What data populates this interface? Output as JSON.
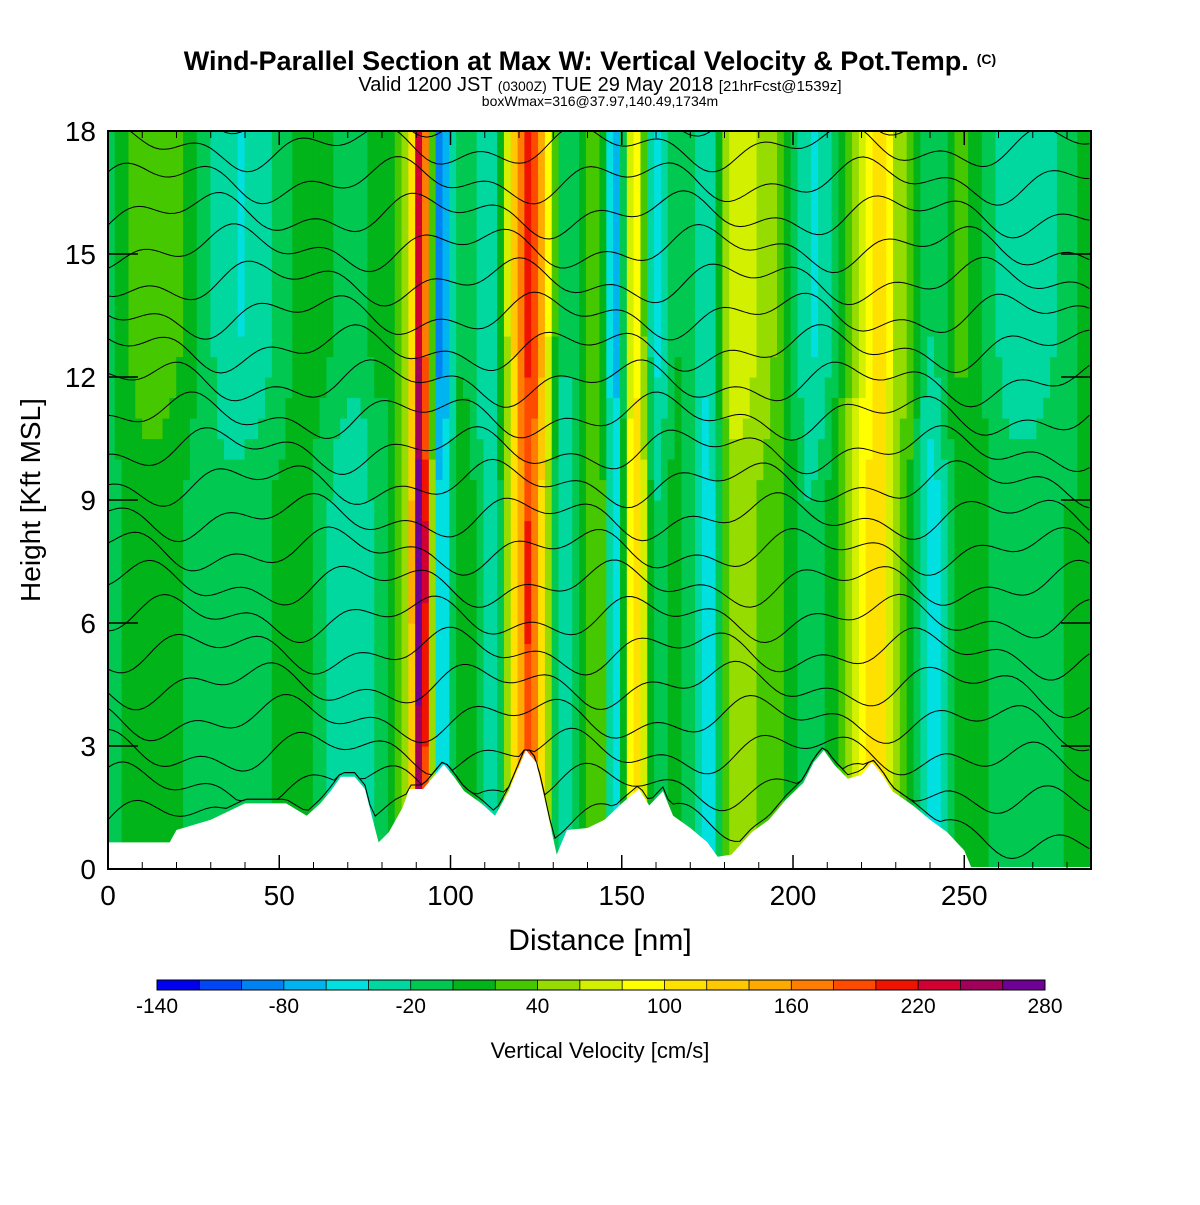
{
  "chart_data": {
    "type": "heatmap",
    "title": "Wind-Parallel Section at Max W: Vertical Velocity & Pot.Temp.",
    "title_mark": "(C)",
    "subtitle": {
      "main": "Valid 1200 JST",
      "utc": "(0300Z)",
      "date": "TUE 29 May 2018",
      "fcst": "[21hrFcst@1539z]"
    },
    "box_info": "boxWmax=316@37.97,140.49,1734m",
    "xlabel": "Distance [nm]",
    "ylabel": "Height [Kft MSL]",
    "xlim": [
      0,
      287
    ],
    "ylim": [
      0,
      18
    ],
    "xticks": [
      "0",
      "50",
      "100",
      "150",
      "200",
      "250"
    ],
    "xtick_values": [
      0,
      50,
      100,
      150,
      200,
      250
    ],
    "yticks": [
      "0",
      "3",
      "6",
      "9",
      "12",
      "15",
      "18"
    ],
    "ytick_values": [
      0,
      3,
      6,
      9,
      12,
      15,
      18
    ],
    "colorbar": {
      "label": "Vertical Velocity [cm/s]",
      "min": -140,
      "max": 300,
      "step": 20,
      "tick_labels": [
        "-140",
        "-80",
        "-20",
        "40",
        "100",
        "160",
        "220",
        "280"
      ],
      "tick_values": [
        -140,
        -80,
        -20,
        40,
        100,
        160,
        220,
        280
      ],
      "colors": [
        "#0000f0",
        "#0046f5",
        "#0082f5",
        "#00b4f0",
        "#00e0e0",
        "#00d8a0",
        "#00c850",
        "#00b419",
        "#46c800",
        "#96dc00",
        "#d2f000",
        "#ffff00",
        "#ffe100",
        "#ffc800",
        "#ffaa00",
        "#ff7d00",
        "#ff4b00",
        "#f01400",
        "#d20032",
        "#a0005a",
        "#6e0096"
      ]
    },
    "columns": [
      {
        "x": 0,
        "w": -5
      },
      {
        "x": 12,
        "w": 10
      },
      {
        "x": 35,
        "w": -15
      },
      {
        "x": 55,
        "w": 8
      },
      {
        "x": 72,
        "w": -40
      },
      {
        "x": 80,
        "w": -10
      },
      {
        "x": 87,
        "w": 50
      },
      {
        "x": 91,
        "w": 260,
        "peak": 7.5,
        "core": 290
      },
      {
        "x": 97,
        "w": -60
      },
      {
        "x": 103,
        "w": 20
      },
      {
        "x": 112,
        "w": -30
      },
      {
        "x": 123,
        "w": 180,
        "peak": 7,
        "core": 210
      },
      {
        "x": 133,
        "w": -40
      },
      {
        "x": 143,
        "w": 40
      },
      {
        "x": 148,
        "w": -50
      },
      {
        "x": 154,
        "w": 120
      },
      {
        "x": 160,
        "w": -20
      },
      {
        "x": 166,
        "w": 10
      },
      {
        "x": 175,
        "w": -50
      },
      {
        "x": 183,
        "w": 50
      },
      {
        "x": 195,
        "w": 30
      },
      {
        "x": 205,
        "w": -20
      },
      {
        "x": 225,
        "w": 110
      },
      {
        "x": 232,
        "w": 30
      },
      {
        "x": 240,
        "w": -50
      },
      {
        "x": 250,
        "w": 10
      },
      {
        "x": 265,
        "w": -10
      },
      {
        "x": 280,
        "w": 0
      }
    ],
    "terrain": [
      {
        "x": 0,
        "h": 0.65
      },
      {
        "x": 18,
        "h": 0.65
      },
      {
        "x": 20,
        "h": 0.95
      },
      {
        "x": 30,
        "h": 1.2
      },
      {
        "x": 40,
        "h": 1.6
      },
      {
        "x": 52,
        "h": 1.6
      },
      {
        "x": 58,
        "h": 1.3
      },
      {
        "x": 62,
        "h": 1.6
      },
      {
        "x": 65,
        "h": 1.9
      },
      {
        "x": 68,
        "h": 2.25
      },
      {
        "x": 72,
        "h": 2.25
      },
      {
        "x": 75,
        "h": 1.95
      },
      {
        "x": 77,
        "h": 1.3
      },
      {
        "x": 79,
        "h": 0.65
      },
      {
        "x": 82,
        "h": 0.9
      },
      {
        "x": 86,
        "h": 1.5
      },
      {
        "x": 88,
        "h": 1.95
      },
      {
        "x": 92,
        "h": 1.95
      },
      {
        "x": 95,
        "h": 2.25
      },
      {
        "x": 98,
        "h": 2.55
      },
      {
        "x": 101,
        "h": 2.25
      },
      {
        "x": 104,
        "h": 1.9
      },
      {
        "x": 109,
        "h": 1.6
      },
      {
        "x": 113,
        "h": 1.3
      },
      {
        "x": 117,
        "h": 1.9
      },
      {
        "x": 120,
        "h": 2.5
      },
      {
        "x": 122,
        "h": 2.9
      },
      {
        "x": 125,
        "h": 2.6
      },
      {
        "x": 128,
        "h": 1.5
      },
      {
        "x": 131,
        "h": 0.35
      },
      {
        "x": 134,
        "h": 0.95
      },
      {
        "x": 140,
        "h": 1.0
      },
      {
        "x": 145,
        "h": 1.2
      },
      {
        "x": 150,
        "h": 1.6
      },
      {
        "x": 155,
        "h": 1.95
      },
      {
        "x": 158,
        "h": 1.55
      },
      {
        "x": 162,
        "h": 1.9
      },
      {
        "x": 165,
        "h": 1.3
      },
      {
        "x": 170,
        "h": 1.0
      },
      {
        "x": 175,
        "h": 0.65
      },
      {
        "x": 178,
        "h": 0.3
      },
      {
        "x": 182,
        "h": 0.35
      },
      {
        "x": 188,
        "h": 0.9
      },
      {
        "x": 193,
        "h": 1.2
      },
      {
        "x": 198,
        "h": 1.7
      },
      {
        "x": 203,
        "h": 2.1
      },
      {
        "x": 206,
        "h": 2.6
      },
      {
        "x": 209,
        "h": 2.9
      },
      {
        "x": 212,
        "h": 2.55
      },
      {
        "x": 216,
        "h": 2.2
      },
      {
        "x": 220,
        "h": 2.3
      },
      {
        "x": 223,
        "h": 2.6
      },
      {
        "x": 226,
        "h": 2.3
      },
      {
        "x": 229,
        "h": 1.9
      },
      {
        "x": 235,
        "h": 1.55
      },
      {
        "x": 240,
        "h": 1.2
      },
      {
        "x": 245,
        "h": 0.9
      },
      {
        "x": 250,
        "h": 0.45
      },
      {
        "x": 252,
        "h": 0.05
      },
      {
        "x": 287,
        "h": 0.05
      }
    ]
  }
}
